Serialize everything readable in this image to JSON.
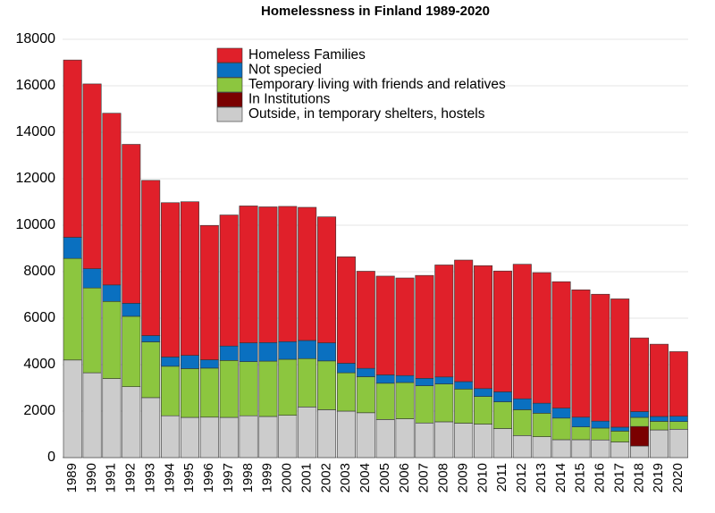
{
  "chart_data": {
    "type": "stacked_bar",
    "title": "Homelessness in Finland 1989-2020",
    "categories": [
      "1989",
      "1990",
      "1991",
      "1992",
      "1993",
      "1994",
      "1995",
      "1996",
      "1997",
      "1998",
      "1999",
      "2000",
      "2001",
      "2002",
      "2003",
      "2004",
      "2005",
      "2006",
      "2007",
      "2008",
      "2009",
      "2010",
      "2011",
      "2012",
      "2013",
      "2014",
      "2015",
      "2016",
      "2017",
      "2018",
      "2019",
      "2020"
    ],
    "series": [
      {
        "name": "Outside, in temporary shelters, hostels",
        "color": "#cccccc",
        "values": [
          4200,
          3650,
          3400,
          3050,
          2580,
          1800,
          1730,
          1740,
          1730,
          1800,
          1770,
          1820,
          2180,
          2060,
          2000,
          1930,
          1640,
          1670,
          1490,
          1540,
          1480,
          1440,
          1250,
          950,
          900,
          770,
          770,
          760,
          670,
          500,
          1190,
          1220
        ]
      },
      {
        "name": "In Institutions",
        "color": "#7a0000",
        "values": [
          0,
          0,
          0,
          0,
          0,
          0,
          0,
          0,
          0,
          0,
          0,
          0,
          0,
          0,
          0,
          0,
          0,
          0,
          0,
          0,
          0,
          0,
          0,
          0,
          0,
          0,
          0,
          0,
          0,
          840,
          0,
          0
        ]
      },
      {
        "name": "Temporary living with friends and relatives",
        "color": "#8cc63f",
        "values": [
          4370,
          3650,
          3320,
          3030,
          2400,
          2130,
          2100,
          2110,
          2450,
          2330,
          2380,
          2410,
          2080,
          2100,
          1650,
          1550,
          1560,
          1560,
          1600,
          1630,
          1470,
          1190,
          1150,
          1110,
          1010,
          930,
          550,
          510,
          470,
          390,
          370,
          330
        ]
      },
      {
        "name": "Not specied",
        "color": "#0a70c0",
        "values": [
          910,
          830,
          710,
          560,
          270,
          400,
          570,
          360,
          620,
          810,
          800,
          760,
          780,
          780,
          410,
          360,
          360,
          300,
          320,
          300,
          320,
          340,
          430,
          470,
          430,
          430,
          420,
          300,
          170,
          250,
          210,
          230
        ]
      },
      {
        "name": "Homeless Families",
        "color": "#e0202a",
        "values": [
          7630,
          7950,
          7390,
          6840,
          6680,
          6640,
          6610,
          5780,
          5640,
          5890,
          5840,
          5820,
          5730,
          5420,
          4580,
          4180,
          4250,
          4200,
          4430,
          4820,
          5230,
          5290,
          5200,
          5790,
          5620,
          5440,
          5480,
          5460,
          5520,
          3170,
          3110,
          2780
        ]
      }
    ],
    "ylim": [
      0,
      18000
    ],
    "yticks": [
      0,
      2000,
      4000,
      6000,
      8000,
      10000,
      12000,
      14000,
      16000,
      18000
    ],
    "grid": true
  }
}
